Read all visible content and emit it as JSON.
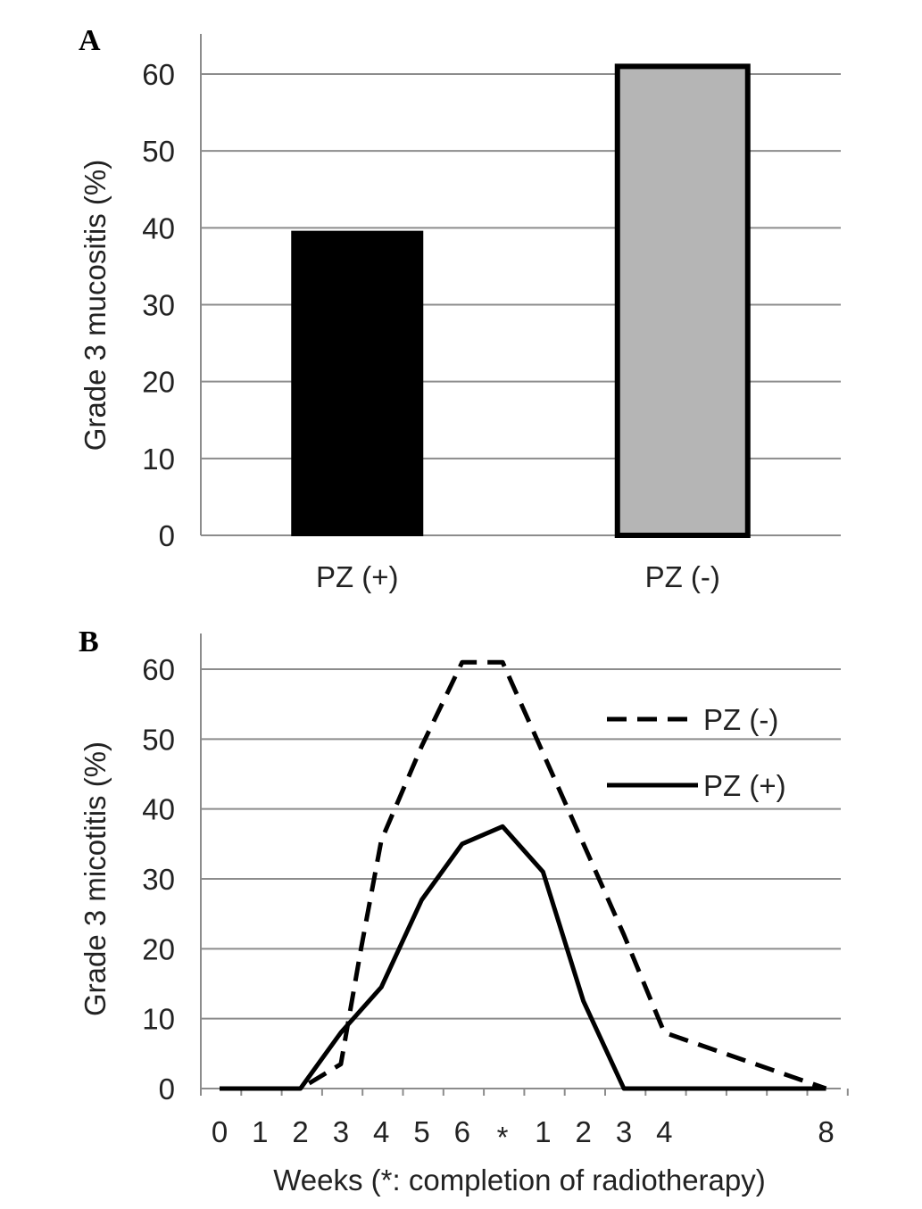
{
  "colors": {
    "bar_pz_plus": "#000000",
    "bar_pz_minus_fill": "#b5b5b5",
    "bar_pz_minus_stroke": "#000000",
    "grid": "#8c8c8c",
    "line": "#000000"
  },
  "chart_data": [
    {
      "panel_label": "A",
      "type": "bar",
      "categories": [
        "PZ (+)",
        "PZ (-)"
      ],
      "values": [
        39.5,
        61
      ],
      "ylabel": "Grade 3 mucositis (%)",
      "xlabel": "",
      "ylim": [
        0,
        60
      ],
      "yticks": [
        0,
        10,
        20,
        30,
        40,
        50,
        60
      ],
      "grid": true
    },
    {
      "panel_label": "B",
      "type": "line",
      "x_tick_labels": [
        "0",
        "1",
        "2",
        "3",
        "4",
        "5",
        "6",
        "*",
        "1",
        "2",
        "3",
        "4",
        "",
        "",
        "",
        "8"
      ],
      "series": [
        {
          "name": "PZ (-)",
          "style": "dashed",
          "points": [
            [
              0,
              0
            ],
            [
              1,
              0
            ],
            [
              2,
              0
            ],
            [
              3,
              3.5
            ],
            [
              3.5,
              20
            ],
            [
              4,
              35.5
            ],
            [
              5,
              49
            ],
            [
              6,
              61
            ],
            [
              7,
              61
            ],
            [
              8,
              48
            ],
            [
              9,
              35
            ],
            [
              10,
              22
            ],
            [
              11,
              8
            ],
            [
              15,
              0
            ]
          ]
        },
        {
          "name": "PZ (+)",
          "style": "solid",
          "points": [
            [
              0,
              0
            ],
            [
              1,
              0
            ],
            [
              2,
              0
            ],
            [
              3,
              8
            ],
            [
              4,
              14.5
            ],
            [
              5,
              27
            ],
            [
              6,
              35
            ],
            [
              7,
              37.5
            ],
            [
              8,
              31
            ],
            [
              9,
              12.5
            ],
            [
              10,
              0
            ],
            [
              11,
              0
            ],
            [
              15,
              0
            ]
          ]
        }
      ],
      "ylabel": "Grade 3 micotitis (%)",
      "xlabel": "Weeks (*: completion of radiotherapy)",
      "ylim": [
        0,
        60
      ],
      "yticks": [
        0,
        10,
        20,
        30,
        40,
        50,
        60
      ],
      "grid": true,
      "legend_position": "top-right"
    }
  ]
}
